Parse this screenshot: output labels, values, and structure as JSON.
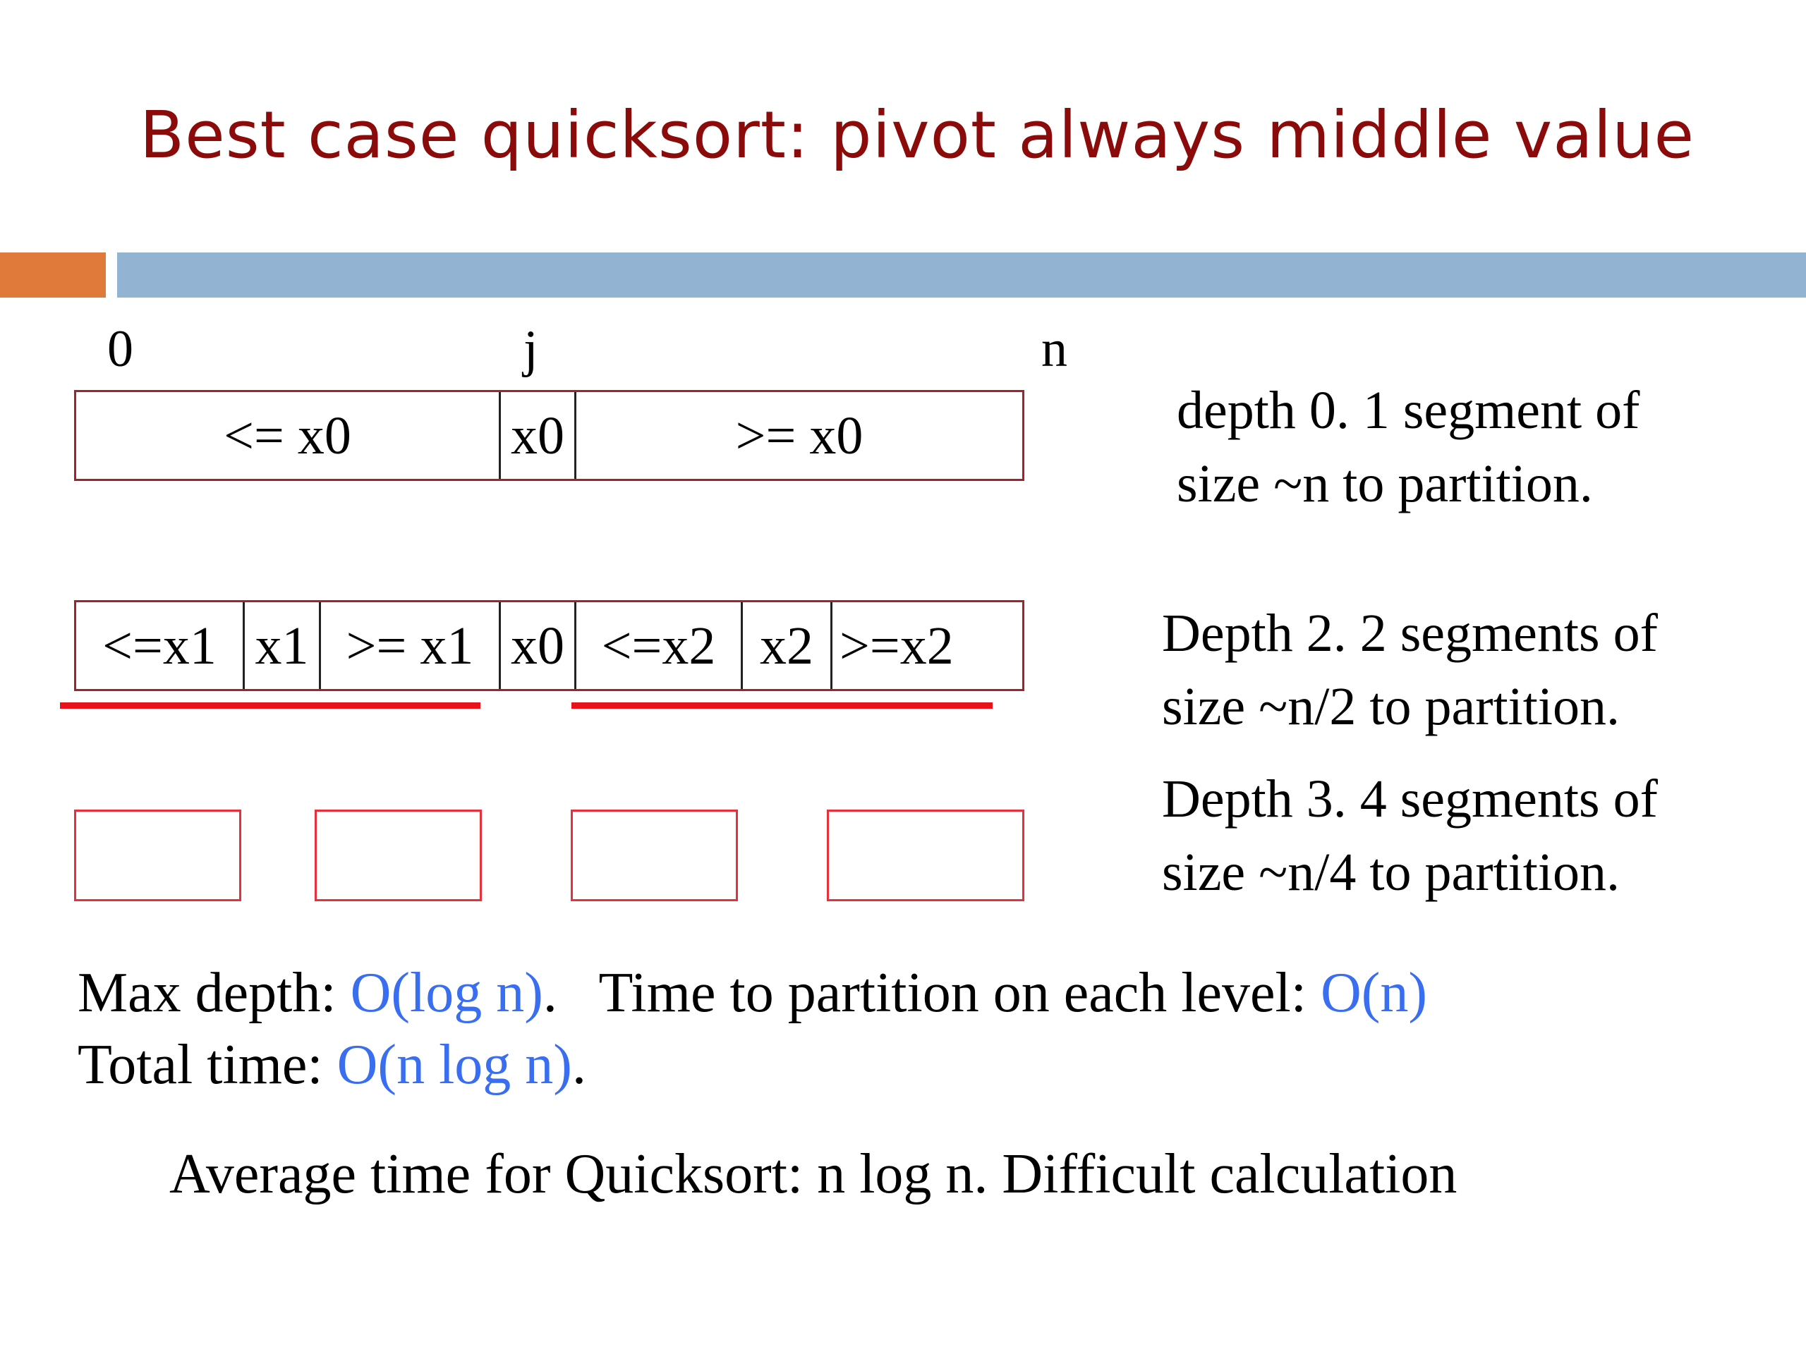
{
  "title": "Best case quicksort: pivot always middle value",
  "index_labels": {
    "start": "0",
    "mid": "j",
    "end": "n"
  },
  "row0": {
    "cells": [
      "<= x0",
      "x0",
      ">= x0"
    ]
  },
  "row1": {
    "cells": [
      "<=x1",
      "x1",
      ">= x1",
      "x0",
      "<=x2",
      "x2",
      ">=x2"
    ]
  },
  "descriptions": {
    "depth0": {
      "line1": "depth 0. 1 segment of",
      "line2": "size ~n to partition."
    },
    "depth2": {
      "line1": "Depth 2. 2 segments of",
      "line2": "size ~n/2 to partition."
    },
    "depth3": {
      "line1": "Depth 3. 4 segments of",
      "line2": "size ~n/4 to partition."
    }
  },
  "summary": {
    "max_depth_label": "Max depth: ",
    "max_depth_value": "O(log n)",
    "max_depth_suffix": ".   Time to partition on each level: ",
    "partition_time_value": "O(n)",
    "total_time_label": "Total time: ",
    "total_time_value": "O(n log n)",
    "total_time_suffix": "."
  },
  "average_line": "Average time for Quicksort: n log n. Difficult calculation",
  "colors": {
    "title": "#8b0b0b",
    "accent_blue": "#3a6ef0",
    "box_border": "#a8202a",
    "underline_red": "#e8121a",
    "bar_orange": "#e07a3a",
    "bar_blue": "#93b3d3"
  }
}
